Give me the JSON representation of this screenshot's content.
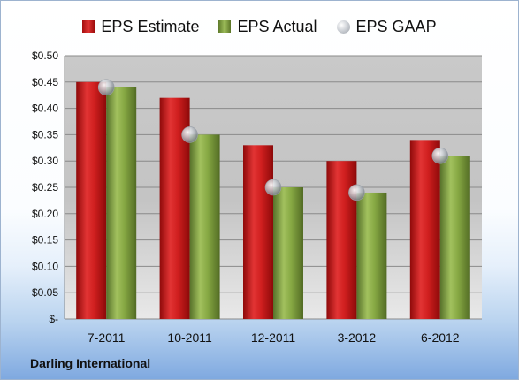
{
  "chart_data": {
    "type": "bar",
    "categories": [
      "7-2011",
      "10-2011",
      "12-2011",
      "3-2012",
      "6-2012"
    ],
    "series": [
      {
        "name": "EPS Estimate",
        "values": [
          0.45,
          0.42,
          0.33,
          0.3,
          0.34
        ],
        "color": "#d01f1f"
      },
      {
        "name": "EPS Actual",
        "values": [
          0.44,
          0.35,
          0.25,
          0.24,
          0.31
        ],
        "color": "#86a843"
      },
      {
        "name": "EPS GAAP",
        "values": [
          0.44,
          0.35,
          0.25,
          0.24,
          0.31
        ],
        "color": "#c0c4ca",
        "marker": "circle"
      }
    ],
    "ylim": [
      0,
      0.5
    ],
    "yticks": [
      0,
      0.05,
      0.1,
      0.15,
      0.2,
      0.25,
      0.3,
      0.35,
      0.4,
      0.45,
      0.5
    ],
    "ytick_labels": [
      "$-",
      "$0.05",
      "$0.10",
      "$0.15",
      "$0.20",
      "$0.25",
      "$0.30",
      "$0.35",
      "$0.40",
      "$0.45",
      "$0.50"
    ],
    "grid": true,
    "legend_position": "top"
  },
  "footer": {
    "company": "Darling International"
  }
}
